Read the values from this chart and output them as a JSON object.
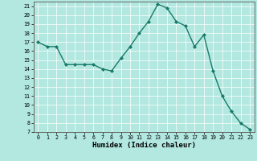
{
  "x": [
    0,
    1,
    2,
    3,
    4,
    5,
    6,
    7,
    8,
    9,
    10,
    11,
    12,
    13,
    14,
    15,
    16,
    17,
    18,
    19,
    20,
    21,
    22,
    23
  ],
  "y": [
    17,
    16.5,
    16.5,
    14.5,
    14.5,
    14.5,
    14.5,
    14,
    13.8,
    15.2,
    16.5,
    18,
    19.3,
    21.2,
    20.8,
    19.3,
    18.8,
    16.5,
    17.8,
    13.8,
    11,
    9.3,
    8,
    7.3
  ],
  "line_color": "#1a7a6a",
  "marker": "D",
  "marker_size": 2.0,
  "linewidth": 1.0,
  "xlim": [
    -0.5,
    23.5
  ],
  "ylim": [
    7,
    21.5
  ],
  "yticks": [
    7,
    8,
    9,
    10,
    11,
    12,
    13,
    14,
    15,
    16,
    17,
    18,
    19,
    20,
    21
  ],
  "xticks": [
    0,
    1,
    2,
    3,
    4,
    5,
    6,
    7,
    8,
    9,
    10,
    11,
    12,
    13,
    14,
    15,
    16,
    17,
    18,
    19,
    20,
    21,
    22,
    23
  ],
  "xlabel": "Humidex (Indice chaleur)",
  "background_color": "#b2e8e0",
  "grid_color": "#ffffff",
  "tick_fontsize": 4.8,
  "xlabel_fontsize": 6.5,
  "spine_color": "#555555"
}
